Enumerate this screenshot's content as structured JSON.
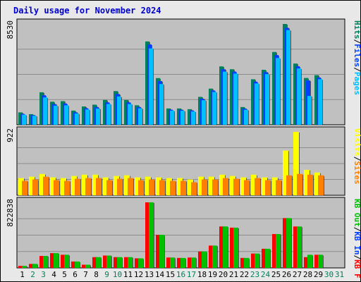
{
  "title": "Daily usage for November 2024",
  "colors": {
    "title": "#0000cc",
    "frame_bg": "#e8e8e8",
    "panel_bg": "#c0c0c0",
    "hits": "#00805c",
    "files": "#0040ff",
    "pages": "#00c0ff",
    "visits": "#ffff00",
    "sites": "#ff8000",
    "kbin": "#ff0000",
    "kbout": "#00c000",
    "weekend_label": "#00805c",
    "weekday_label": "#000000"
  },
  "legends": {
    "top": [
      {
        "text": "Hits",
        "color": "#00805c"
      },
      {
        "text": "/",
        "color": "#000000"
      },
      {
        "text": "Files",
        "color": "#0040ff"
      },
      {
        "text": "/",
        "color": "#000000"
      },
      {
        "text": "Pages",
        "color": "#00c0ff"
      }
    ],
    "middle": [
      {
        "text": "Visits",
        "color": "#ffff00"
      },
      {
        "text": "/",
        "color": "#000000"
      },
      {
        "text": "Sites",
        "color": "#ff8000"
      }
    ],
    "bottom": [
      {
        "text": "KB Out",
        "color": "#00c000"
      },
      {
        "text": "/",
        "color": "#000000"
      },
      {
        "text": "KB In",
        "color": "#0040ff"
      },
      {
        "text": "/",
        "color": "#000000"
      },
      {
        "text": "KB F",
        "color": "#ff0000"
      }
    ]
  },
  "chart_data": {
    "type": "bar",
    "title": "Daily usage for November 2024",
    "categories": [
      "1",
      "2",
      "3",
      "4",
      "5",
      "6",
      "7",
      "8",
      "9",
      "10",
      "11",
      "12",
      "13",
      "14",
      "15",
      "16",
      "17",
      "18",
      "19",
      "20",
      "21",
      "22",
      "23",
      "24",
      "25",
      "26",
      "27",
      "28",
      "29",
      "30",
      "31"
    ],
    "weekend_days": [
      2,
      3,
      9,
      10,
      16,
      17,
      23,
      24,
      30,
      31
    ],
    "panels": [
      {
        "name": "hits-files-pages",
        "max_label": "8530",
        "max": 8530,
        "series": [
          {
            "name": "Hits",
            "values": [
              1050,
              900,
              2750,
              1950,
              2000,
              1200,
              1550,
              1700,
              2100,
              2850,
              2100,
              1650,
              7050,
              3950,
              1380,
              1380,
              1320,
              2360,
              3060,
              4940,
              4700,
              1500,
              3850,
              4650,
              6160,
              8530,
              5180,
              3960,
              4200,
              null,
              null
            ]
          },
          {
            "name": "Files",
            "values": [
              920,
              820,
              2500,
              1750,
              1800,
              1050,
              1400,
              1500,
              1900,
              2600,
              1900,
              1500,
              6800,
              3700,
              1280,
              1270,
              1210,
              2200,
              2900,
              4700,
              4500,
              1370,
              3650,
              4450,
              5900,
              8200,
              4950,
              3750,
              4000,
              null,
              null
            ]
          },
          {
            "name": "Pages",
            "values": [
              850,
              760,
              2320,
              1620,
              1650,
              960,
              1300,
              1380,
              1760,
              2400,
              1760,
              1400,
              6460,
              3450,
              1200,
              1190,
              1130,
              2080,
              2780,
              4500,
              4330,
              1280,
              3500,
              4290,
              5650,
              8020,
              4770,
              2440,
              3860,
              null,
              null
            ]
          }
        ]
      },
      {
        "name": "visits-sites",
        "max_label": "922",
        "max": 922,
        "series": [
          {
            "name": "Visits",
            "values": [
              250,
              270,
              310,
              260,
              250,
              280,
              300,
              300,
              260,
              280,
              290,
              260,
              270,
              260,
              250,
              250,
              230,
              270,
              270,
              300,
              280,
              260,
              300,
              260,
              260,
              650,
              922,
              370,
              330,
              null,
              null
            ]
          },
          {
            "name": "Sites",
            "values": [
              210,
              230,
              270,
              220,
              210,
              240,
              250,
              250,
              220,
              240,
              250,
              220,
              230,
              220,
              210,
              210,
              190,
              230,
              230,
              250,
              240,
              220,
              250,
              220,
              220,
              290,
              310,
              300,
              290,
              null,
              null
            ]
          }
        ]
      },
      {
        "name": "kb",
        "max_label": "822838",
        "max": 822838,
        "series": [
          {
            "name": "KB F",
            "values": [
              25000,
              50000,
              150000,
              185000,
              165000,
              80000,
              40000,
              135000,
              155000,
              135000,
              135000,
              120000,
              822838,
              415000,
              130000,
              125000,
              130000,
              205000,
              280000,
              520000,
              505000,
              125000,
              180000,
              240000,
              425000,
              625000,
              520000,
              135000,
              165000,
              null,
              null
            ]
          },
          {
            "name": "KB In",
            "values": [
              0,
              0,
              0,
              0,
              0,
              0,
              0,
              0,
              0,
              0,
              0,
              0,
              0,
              0,
              0,
              0,
              0,
              0,
              0,
              0,
              0,
              0,
              0,
              0,
              0,
              0,
              0,
              0,
              0,
              null,
              null
            ]
          },
          {
            "name": "KB Out",
            "values": [
              25000,
              50000,
              150000,
              185000,
              165000,
              80000,
              40000,
              135000,
              155000,
              135000,
              135000,
              120000,
              822838,
              415000,
              130000,
              125000,
              130000,
              205000,
              280000,
              520000,
              505000,
              125000,
              180000,
              240000,
              425000,
              625000,
              520000,
              165000,
              165000,
              null,
              null
            ]
          }
        ]
      }
    ]
  }
}
